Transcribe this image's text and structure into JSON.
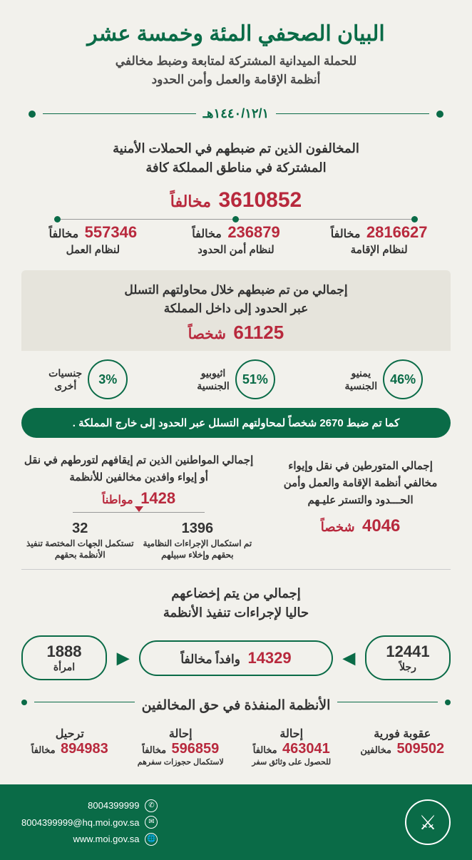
{
  "colors": {
    "accent_green": "#0a6b47",
    "accent_red": "#b8293d",
    "bg": "#f2f1ec",
    "gray_box": "#e6e4dc",
    "text": "#333333"
  },
  "header": {
    "title": "البيان الصحفي المئة وخمسة عشر",
    "subtitle_l1": "للحملة الميدانية المشتركة لمتابعة وضبط مخالفي",
    "subtitle_l2": "أنظمة الإقامة والعمل وأمن الحدود",
    "date": "١٤٤٠/١٢/١هـ"
  },
  "section1": {
    "title_l1": "المخالفون الذين تم ضبطهم في الحملات الأمنية",
    "title_l2": "المشتركة في مناطق المملكة كافة",
    "total_num": "3610852",
    "total_unit": "مخالفاً",
    "items": [
      {
        "num": "2816627",
        "unit": "مخالفاً",
        "label": "لنظام الإقامة"
      },
      {
        "num": "236879",
        "unit": "مخالفاً",
        "label": "لنظام أمن الحدود"
      },
      {
        "num": "557346",
        "unit": "مخالفاً",
        "label": "لنظام العمل"
      }
    ]
  },
  "section2": {
    "heading_l1": "إجمالي من تم ضبطهم خلال محاولتهم التسلل",
    "heading_l2": "عبر الحدود إلى داخل المملكة",
    "total_num": "61125",
    "total_unit": "شخصاً",
    "percentages": [
      {
        "pct": "46%",
        "label_l1": "يمنيو",
        "label_l2": "الجنسية"
      },
      {
        "pct": "51%",
        "label_l1": "اثيوبيو",
        "label_l2": "الجنسية"
      },
      {
        "pct": "3%",
        "label_l1": "جنسيات",
        "label_l2": "أخرى"
      }
    ],
    "banner": "كما تم ضبط 2670 شخصاً لمحاولتهم التسلل عبر الحدود إلى خارج المملكة ."
  },
  "section3": {
    "right": {
      "txt": "إجمالي المتورطين في نقل وإيواء مخالفي أنظمة الإقامة والعمل وأمن الحـــدود والتستر عليـهم",
      "num": "4046",
      "unit": "شخصاً"
    },
    "left": {
      "txt": "إجمالي المواطنين الذين تم إيقافهم لتورطهم في نقل أو إيواء وافدين مخالفين للأنظمة",
      "num": "1428",
      "unit": "مواطناً",
      "sub": [
        {
          "num": "1396",
          "label": "تم استكمال الإجراءات النظامية بحقهم وإخلاء سبيلهم"
        },
        {
          "num": "32",
          "label": "تستكمل الجهات المختصة تنفيذ الأنظمة بحقهم"
        }
      ]
    }
  },
  "section4": {
    "title_l1": "إجمالي من يتم إخضاعهم",
    "title_l2": "حاليا لإجراءات تنفيذ الأنظمة",
    "men": {
      "num": "12441",
      "label": "رجلاً"
    },
    "main": {
      "num": "14329",
      "unit": "وافداً مخالفاً"
    },
    "women": {
      "num": "1888",
      "label": "امرأة"
    }
  },
  "section5": {
    "title": "الأنظمة المنفذة في حق المخالفين",
    "items": [
      {
        "head": "عقوبة فورية",
        "num": "509502",
        "unit": "مخالفين",
        "sub": ""
      },
      {
        "head": "إحالة",
        "num": "463041",
        "unit": "مخالفاً",
        "sub": "للحصول على وثائق سفر"
      },
      {
        "head": "إحالة",
        "num": "596859",
        "unit": "مخالفاً",
        "sub": "لاستكمال حجوزات سفرهم"
      },
      {
        "head": "ترحيل",
        "num": "894983",
        "unit": "مخالفاً",
        "sub": ""
      }
    ]
  },
  "footer": {
    "phone": "8004399999",
    "email": "8004399999@hq.moi.gov.sa",
    "web": "www.moi.gov.sa"
  }
}
